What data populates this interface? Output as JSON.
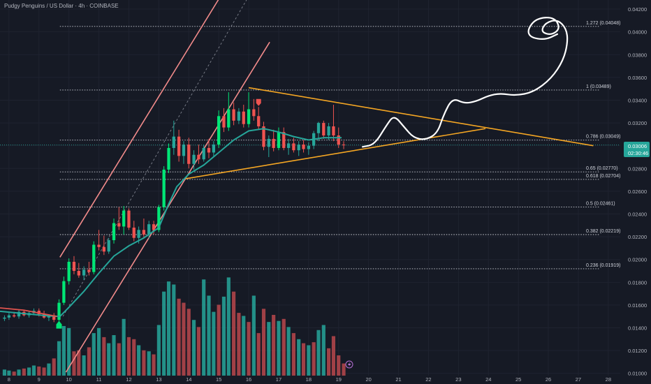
{
  "header": {
    "symbol_line": "Pudgy Penguins / US Dollar · 4h · COINBASE"
  },
  "colors": {
    "background": "#161a25",
    "grid": "#1f2330",
    "axis_text": "#b2b5be",
    "bull": "#26a69a",
    "bull_bright": "#00e676",
    "bear": "#ef5350",
    "volume_bull": "#26a69a",
    "volume_bear": "#b8484c",
    "ma_line": "#26a69a",
    "channel": "#f28b8b",
    "triangle": "#f5a623",
    "fib": "#d1d4dc",
    "drawing": "#ffffff",
    "price_label_bg": "#26a69a"
  },
  "price_label": {
    "value": "0.03006",
    "countdown": "02:30:46"
  },
  "chart_data": {
    "type": "candlestick",
    "title": "Pudgy Penguins / US Dollar · 4h · COINBASE",
    "ylim": [
      0.0098,
      0.0428
    ],
    "y_ticks": [
      "0.04200",
      "0.04000",
      "0.03800",
      "0.03600",
      "0.03400",
      "0.03200",
      "0.03000",
      "0.02800",
      "0.02600",
      "0.02400",
      "0.02200",
      "0.02000",
      "0.01800",
      "0.01600",
      "0.01400",
      "0.01200",
      "0.01000"
    ],
    "x_ticks": [
      "8",
      "9",
      "10",
      "11",
      "12",
      "13",
      "14",
      "15",
      "16",
      "17",
      "18",
      "19",
      "20",
      "21",
      "22",
      "23",
      "24",
      "25",
      "26",
      "27",
      "28"
    ],
    "x_range": [
      7.7,
      28.4
    ],
    "fib_levels": [
      {
        "label": "1.272 (0.04048)",
        "value": 0.04048
      },
      {
        "label": "1 (0.03489)",
        "value": 0.03489
      },
      {
        "label": "0.786 (0.03049)",
        "value": 0.03049
      },
      {
        "label": "0.65 (0.02770)",
        "value": 0.0277
      },
      {
        "label": "0.618 (0.02704)",
        "value": 0.02704
      },
      {
        "label": "0.5 (0.02461)",
        "value": 0.02461
      },
      {
        "label": "0.382 (0.02219)",
        "value": 0.02219
      },
      {
        "label": "0.236 (0.01919)",
        "value": 0.01919
      }
    ],
    "candles": [
      {
        "t": 7.85,
        "o": 0.0148,
        "h": 0.0151,
        "l": 0.0146,
        "c": 0.0149
      },
      {
        "t": 8.0,
        "o": 0.0149,
        "h": 0.0153,
        "l": 0.0147,
        "c": 0.0151
      },
      {
        "t": 8.17,
        "o": 0.0151,
        "h": 0.0154,
        "l": 0.0149,
        "c": 0.015
      },
      {
        "t": 8.33,
        "o": 0.015,
        "h": 0.0156,
        "l": 0.0148,
        "c": 0.0154
      },
      {
        "t": 8.5,
        "o": 0.0154,
        "h": 0.0156,
        "l": 0.015,
        "c": 0.0151
      },
      {
        "t": 8.67,
        "o": 0.0151,
        "h": 0.0155,
        "l": 0.0149,
        "c": 0.0153
      },
      {
        "t": 8.83,
        "o": 0.0153,
        "h": 0.0157,
        "l": 0.0151,
        "c": 0.0155
      },
      {
        "t": 9.0,
        "o": 0.0155,
        "h": 0.0157,
        "l": 0.015,
        "c": 0.0152
      },
      {
        "t": 9.17,
        "o": 0.0152,
        "h": 0.0155,
        "l": 0.0148,
        "c": 0.0149
      },
      {
        "t": 9.33,
        "o": 0.0149,
        "h": 0.0152,
        "l": 0.0146,
        "c": 0.0151
      },
      {
        "t": 9.5,
        "o": 0.0151,
        "h": 0.0153,
        "l": 0.0145,
        "c": 0.0147
      },
      {
        "t": 9.67,
        "o": 0.0147,
        "h": 0.0165,
        "l": 0.0146,
        "c": 0.0162
      },
      {
        "t": 9.83,
        "o": 0.0162,
        "h": 0.0185,
        "l": 0.016,
        "c": 0.0181
      },
      {
        "t": 10.0,
        "o": 0.0181,
        "h": 0.0201,
        "l": 0.0178,
        "c": 0.0198
      },
      {
        "t": 10.17,
        "o": 0.0198,
        "h": 0.0203,
        "l": 0.0187,
        "c": 0.019
      },
      {
        "t": 10.33,
        "o": 0.019,
        "h": 0.0197,
        "l": 0.0184,
        "c": 0.0186
      },
      {
        "t": 10.5,
        "o": 0.0186,
        "h": 0.0194,
        "l": 0.0182,
        "c": 0.0191
      },
      {
        "t": 10.67,
        "o": 0.0191,
        "h": 0.0198,
        "l": 0.0186,
        "c": 0.0189
      },
      {
        "t": 10.83,
        "o": 0.0189,
        "h": 0.0216,
        "l": 0.0187,
        "c": 0.0213
      },
      {
        "t": 11.0,
        "o": 0.0213,
        "h": 0.0226,
        "l": 0.0208,
        "c": 0.0211
      },
      {
        "t": 11.17,
        "o": 0.0211,
        "h": 0.0221,
        "l": 0.0204,
        "c": 0.0207
      },
      {
        "t": 11.33,
        "o": 0.0207,
        "h": 0.0219,
        "l": 0.0205,
        "c": 0.0217
      },
      {
        "t": 11.5,
        "o": 0.0217,
        "h": 0.0236,
        "l": 0.0214,
        "c": 0.0232
      },
      {
        "t": 11.67,
        "o": 0.0232,
        "h": 0.0246,
        "l": 0.0226,
        "c": 0.0229
      },
      {
        "t": 11.83,
        "o": 0.0229,
        "h": 0.0247,
        "l": 0.0222,
        "c": 0.0243
      },
      {
        "t": 12.0,
        "o": 0.0243,
        "h": 0.0245,
        "l": 0.0226,
        "c": 0.0228
      },
      {
        "t": 12.17,
        "o": 0.0228,
        "h": 0.0234,
        "l": 0.0216,
        "c": 0.0219
      },
      {
        "t": 12.33,
        "o": 0.0219,
        "h": 0.0229,
        "l": 0.0214,
        "c": 0.0226
      },
      {
        "t": 12.5,
        "o": 0.0226,
        "h": 0.0236,
        "l": 0.0219,
        "c": 0.0222
      },
      {
        "t": 12.67,
        "o": 0.0222,
        "h": 0.0234,
        "l": 0.0218,
        "c": 0.0231
      },
      {
        "t": 12.83,
        "o": 0.0231,
        "h": 0.0234,
        "l": 0.0222,
        "c": 0.0226
      },
      {
        "t": 13.0,
        "o": 0.0226,
        "h": 0.0248,
        "l": 0.0224,
        "c": 0.0246
      },
      {
        "t": 13.17,
        "o": 0.0246,
        "h": 0.0282,
        "l": 0.0243,
        "c": 0.0279
      },
      {
        "t": 13.33,
        "o": 0.0279,
        "h": 0.0302,
        "l": 0.0276,
        "c": 0.0298
      },
      {
        "t": 13.5,
        "o": 0.0298,
        "h": 0.0322,
        "l": 0.0292,
        "c": 0.0308
      },
      {
        "t": 13.67,
        "o": 0.0308,
        "h": 0.0314,
        "l": 0.0286,
        "c": 0.0291
      },
      {
        "t": 13.83,
        "o": 0.0291,
        "h": 0.0304,
        "l": 0.0284,
        "c": 0.0301
      },
      {
        "t": 14.0,
        "o": 0.0301,
        "h": 0.0307,
        "l": 0.028,
        "c": 0.0284
      },
      {
        "t": 14.17,
        "o": 0.0284,
        "h": 0.0296,
        "l": 0.0279,
        "c": 0.0292
      },
      {
        "t": 14.33,
        "o": 0.0292,
        "h": 0.0301,
        "l": 0.0284,
        "c": 0.0288
      },
      {
        "t": 14.5,
        "o": 0.0288,
        "h": 0.0301,
        "l": 0.0286,
        "c": 0.0298
      },
      {
        "t": 14.67,
        "o": 0.0298,
        "h": 0.0306,
        "l": 0.0289,
        "c": 0.0294
      },
      {
        "t": 14.83,
        "o": 0.0294,
        "h": 0.0304,
        "l": 0.029,
        "c": 0.0301
      },
      {
        "t": 15.0,
        "o": 0.0301,
        "h": 0.0331,
        "l": 0.0298,
        "c": 0.0326
      },
      {
        "t": 15.17,
        "o": 0.0326,
        "h": 0.0333,
        "l": 0.0312,
        "c": 0.0316
      },
      {
        "t": 15.33,
        "o": 0.0316,
        "h": 0.0347,
        "l": 0.0313,
        "c": 0.0332
      },
      {
        "t": 15.5,
        "o": 0.0332,
        "h": 0.0338,
        "l": 0.0318,
        "c": 0.0322
      },
      {
        "t": 15.67,
        "o": 0.0322,
        "h": 0.0333,
        "l": 0.0319,
        "c": 0.033
      },
      {
        "t": 15.83,
        "o": 0.033,
        "h": 0.0336,
        "l": 0.0316,
        "c": 0.0319
      },
      {
        "t": 16.0,
        "o": 0.0319,
        "h": 0.0347,
        "l": 0.0316,
        "c": 0.0332
      },
      {
        "t": 16.17,
        "o": 0.0332,
        "h": 0.0341,
        "l": 0.0322,
        "c": 0.0326
      },
      {
        "t": 16.33,
        "o": 0.0326,
        "h": 0.0334,
        "l": 0.0314,
        "c": 0.0317
      },
      {
        "t": 16.5,
        "o": 0.0317,
        "h": 0.0321,
        "l": 0.0296,
        "c": 0.0299
      },
      {
        "t": 16.67,
        "o": 0.0299,
        "h": 0.0309,
        "l": 0.029,
        "c": 0.0306
      },
      {
        "t": 16.83,
        "o": 0.0306,
        "h": 0.0314,
        "l": 0.0295,
        "c": 0.0298
      },
      {
        "t": 17.0,
        "o": 0.0298,
        "h": 0.0316,
        "l": 0.0296,
        "c": 0.0312
      },
      {
        "t": 17.17,
        "o": 0.0312,
        "h": 0.0316,
        "l": 0.0296,
        "c": 0.0298
      },
      {
        "t": 17.33,
        "o": 0.0298,
        "h": 0.0306,
        "l": 0.0292,
        "c": 0.0302
      },
      {
        "t": 17.5,
        "o": 0.0302,
        "h": 0.0307,
        "l": 0.0294,
        "c": 0.0296
      },
      {
        "t": 17.67,
        "o": 0.0296,
        "h": 0.0304,
        "l": 0.0291,
        "c": 0.0301
      },
      {
        "t": 17.83,
        "o": 0.0301,
        "h": 0.0305,
        "l": 0.0294,
        "c": 0.0297
      },
      {
        "t": 18.0,
        "o": 0.0297,
        "h": 0.0303,
        "l": 0.0292,
        "c": 0.03
      },
      {
        "t": 18.17,
        "o": 0.03,
        "h": 0.0313,
        "l": 0.0297,
        "c": 0.0311
      },
      {
        "t": 18.33,
        "o": 0.0311,
        "h": 0.0321,
        "l": 0.0304,
        "c": 0.032
      },
      {
        "t": 18.5,
        "o": 0.032,
        "h": 0.0322,
        "l": 0.0306,
        "c": 0.0309
      },
      {
        "t": 18.67,
        "o": 0.0309,
        "h": 0.032,
        "l": 0.0305,
        "c": 0.0317
      },
      {
        "t": 18.83,
        "o": 0.0317,
        "h": 0.0336,
        "l": 0.0304,
        "c": 0.0309
      },
      {
        "t": 19.0,
        "o": 0.0309,
        "h": 0.0316,
        "l": 0.0298,
        "c": 0.0301
      },
      {
        "t": 19.17,
        "o": 0.0301,
        "h": 0.0304,
        "l": 0.0297,
        "c": 0.03006
      }
    ],
    "volume": [
      {
        "t": 7.85,
        "v": 0.6,
        "up": true
      },
      {
        "t": 8.0,
        "v": 0.5,
        "up": true
      },
      {
        "t": 8.17,
        "v": 0.4,
        "up": false
      },
      {
        "t": 8.33,
        "v": 0.6,
        "up": true
      },
      {
        "t": 8.5,
        "v": 0.7,
        "up": false
      },
      {
        "t": 8.67,
        "v": 0.8,
        "up": true
      },
      {
        "t": 8.83,
        "v": 1.0,
        "up": true
      },
      {
        "t": 9.0,
        "v": 0.9,
        "up": false
      },
      {
        "t": 9.17,
        "v": 0.8,
        "up": false
      },
      {
        "t": 9.33,
        "v": 1.2,
        "up": true
      },
      {
        "t": 9.5,
        "v": 1.7,
        "up": false
      },
      {
        "t": 9.67,
        "v": 3.4,
        "up": true
      },
      {
        "t": 9.83,
        "v": 4.9,
        "up": true
      },
      {
        "t": 10.0,
        "v": 4.7,
        "up": true
      },
      {
        "t": 10.17,
        "v": 2.4,
        "up": false
      },
      {
        "t": 10.33,
        "v": 2.5,
        "up": false
      },
      {
        "t": 10.5,
        "v": 2.0,
        "up": true
      },
      {
        "t": 10.67,
        "v": 2.8,
        "up": false
      },
      {
        "t": 10.83,
        "v": 4.2,
        "up": true
      },
      {
        "t": 11.0,
        "v": 4.7,
        "up": true
      },
      {
        "t": 11.17,
        "v": 3.8,
        "up": false
      },
      {
        "t": 11.33,
        "v": 3.2,
        "up": true
      },
      {
        "t": 11.5,
        "v": 4.0,
        "up": true
      },
      {
        "t": 11.67,
        "v": 3.2,
        "up": false
      },
      {
        "t": 11.83,
        "v": 5.6,
        "up": true
      },
      {
        "t": 12.0,
        "v": 3.8,
        "up": false
      },
      {
        "t": 12.17,
        "v": 3.6,
        "up": false
      },
      {
        "t": 12.33,
        "v": 3.0,
        "up": true
      },
      {
        "t": 12.5,
        "v": 2.5,
        "up": false
      },
      {
        "t": 12.67,
        "v": 2.4,
        "up": true
      },
      {
        "t": 12.83,
        "v": 2.1,
        "up": false
      },
      {
        "t": 13.0,
        "v": 5.0,
        "up": true
      },
      {
        "t": 13.17,
        "v": 8.3,
        "up": true
      },
      {
        "t": 13.33,
        "v": 9.3,
        "up": true
      },
      {
        "t": 13.5,
        "v": 9.0,
        "up": true
      },
      {
        "t": 13.67,
        "v": 7.6,
        "up": false
      },
      {
        "t": 13.83,
        "v": 7.2,
        "up": false
      },
      {
        "t": 14.0,
        "v": 6.6,
        "up": false
      },
      {
        "t": 14.17,
        "v": 5.5,
        "up": true
      },
      {
        "t": 14.33,
        "v": 4.8,
        "up": false
      },
      {
        "t": 14.5,
        "v": 9.5,
        "up": true
      },
      {
        "t": 14.67,
        "v": 7.9,
        "up": true
      },
      {
        "t": 14.83,
        "v": 6.3,
        "up": true
      },
      {
        "t": 15.0,
        "v": 7.0,
        "up": false
      },
      {
        "t": 15.17,
        "v": 7.8,
        "up": true
      },
      {
        "t": 15.33,
        "v": 9.7,
        "up": true
      },
      {
        "t": 15.5,
        "v": 8.3,
        "up": false
      },
      {
        "t": 15.67,
        "v": 6.2,
        "up": false
      },
      {
        "t": 15.83,
        "v": 5.9,
        "up": true
      },
      {
        "t": 16.0,
        "v": 5.3,
        "up": false
      },
      {
        "t": 16.17,
        "v": 7.9,
        "up": true
      },
      {
        "t": 16.33,
        "v": 4.2,
        "up": false
      },
      {
        "t": 16.5,
        "v": 6.6,
        "up": false
      },
      {
        "t": 16.67,
        "v": 5.3,
        "up": true
      },
      {
        "t": 16.83,
        "v": 6.0,
        "up": false
      },
      {
        "t": 17.0,
        "v": 5.4,
        "up": true
      },
      {
        "t": 17.17,
        "v": 5.6,
        "up": false
      },
      {
        "t": 17.33,
        "v": 4.8,
        "up": true
      },
      {
        "t": 17.5,
        "v": 4.2,
        "up": false
      },
      {
        "t": 17.67,
        "v": 3.6,
        "up": true
      },
      {
        "t": 17.83,
        "v": 3.2,
        "up": false
      },
      {
        "t": 18.0,
        "v": 3.0,
        "up": true
      },
      {
        "t": 18.17,
        "v": 3.3,
        "up": false
      },
      {
        "t": 18.33,
        "v": 4.5,
        "up": true
      },
      {
        "t": 18.5,
        "v": 5.0,
        "up": true
      },
      {
        "t": 18.67,
        "v": 2.7,
        "up": false
      },
      {
        "t": 18.83,
        "v": 3.9,
        "up": false
      },
      {
        "t": 19.0,
        "v": 2.0,
        "up": false
      },
      {
        "t": 19.17,
        "v": 1.2,
        "up": false
      }
    ],
    "moving_average": [
      {
        "t": 7.7,
        "y": 0.01545
      },
      {
        "t": 8.5,
        "y": 0.01525
      },
      {
        "t": 9.3,
        "y": 0.01505
      },
      {
        "t": 9.7,
        "y": 0.015
      },
      {
        "t": 10.0,
        "y": 0.0158
      },
      {
        "t": 10.5,
        "y": 0.0172
      },
      {
        "t": 11.0,
        "y": 0.0188
      },
      {
        "t": 11.5,
        "y": 0.0203
      },
      {
        "t": 12.0,
        "y": 0.0212
      },
      {
        "t": 12.5,
        "y": 0.0219
      },
      {
        "t": 13.0,
        "y": 0.0228
      },
      {
        "t": 13.3,
        "y": 0.0247
      },
      {
        "t": 13.6,
        "y": 0.0264
      },
      {
        "t": 14.0,
        "y": 0.0275
      },
      {
        "t": 14.5,
        "y": 0.0283
      },
      {
        "t": 15.0,
        "y": 0.0294
      },
      {
        "t": 15.5,
        "y": 0.0305
      },
      {
        "t": 16.0,
        "y": 0.0313
      },
      {
        "t": 16.5,
        "y": 0.0315
      },
      {
        "t": 17.0,
        "y": 0.0312
      },
      {
        "t": 17.5,
        "y": 0.0308
      },
      {
        "t": 18.0,
        "y": 0.0305
      },
      {
        "t": 18.5,
        "y": 0.0307
      },
      {
        "t": 19.1,
        "y": 0.0307
      }
    ],
    "red_average": [
      {
        "t": 7.7,
        "y": 0.01575
      },
      {
        "t": 8.5,
        "y": 0.01555
      },
      {
        "t": 9.3,
        "y": 0.01515
      },
      {
        "t": 9.6,
        "y": 0.015
      }
    ],
    "channel_lines": [
      {
        "p1": {
          "t": 9.7,
          "y": 0.0202
        },
        "p2": {
          "t": 15.45,
          "y": 0.0448
        }
      },
      {
        "p1": {
          "t": 9.9,
          "y": 0.0101
        },
        "p2": {
          "t": 16.7,
          "y": 0.0391
        }
      },
      {
        "p1": {
          "t": 9.8,
          "y": 0.015
        },
        "p2": {
          "t": 16.3,
          "y": 0.0445
        },
        "dashed": true
      }
    ],
    "triangle_lines": [
      {
        "p1": {
          "t": 16.0,
          "y": 0.0351
        },
        "p2": {
          "t": 27.5,
          "y": 0.03
        }
      },
      {
        "p1": {
          "t": 13.9,
          "y": 0.0271
        },
        "p2": {
          "t": 23.9,
          "y": 0.0315
        }
      }
    ],
    "projection_path": [
      {
        "t": 19.8,
        "y": 0.0299
      },
      {
        "t": 20.2,
        "y": 0.0301
      },
      {
        "t": 20.6,
        "y": 0.0318
      },
      {
        "t": 20.85,
        "y": 0.0327
      },
      {
        "t": 21.2,
        "y": 0.0316
      },
      {
        "t": 21.5,
        "y": 0.0307
      },
      {
        "t": 21.9,
        "y": 0.0305
      },
      {
        "t": 22.3,
        "y": 0.0311
      },
      {
        "t": 22.5,
        "y": 0.0327
      },
      {
        "t": 22.8,
        "y": 0.0342
      },
      {
        "t": 23.2,
        "y": 0.0337
      },
      {
        "t": 23.6,
        "y": 0.0339
      },
      {
        "t": 24.0,
        "y": 0.0344
      },
      {
        "t": 24.4,
        "y": 0.0346
      },
      {
        "t": 24.9,
        "y": 0.0344
      },
      {
        "t": 25.5,
        "y": 0.0347
      },
      {
        "t": 26.1,
        "y": 0.0359
      },
      {
        "t": 26.5,
        "y": 0.0375
      },
      {
        "t": 26.65,
        "y": 0.0391
      },
      {
        "t": 26.6,
        "y": 0.0403
      },
      {
        "t": 26.3,
        "y": 0.0411
      },
      {
        "t": 25.9,
        "y": 0.0408
      },
      {
        "t": 25.75,
        "y": 0.04
      },
      {
        "t": 26.1,
        "y": 0.0397
      },
      {
        "t": 26.4,
        "y": 0.0403
      },
      {
        "t": 26.2,
        "y": 0.0413
      },
      {
        "t": 25.6,
        "y": 0.0412
      },
      {
        "t": 25.3,
        "y": 0.0402
      },
      {
        "t": 25.4,
        "y": 0.0395
      },
      {
        "t": 25.9,
        "y": 0.0393
      },
      {
        "t": 26.3,
        "y": 0.0398
      }
    ]
  }
}
